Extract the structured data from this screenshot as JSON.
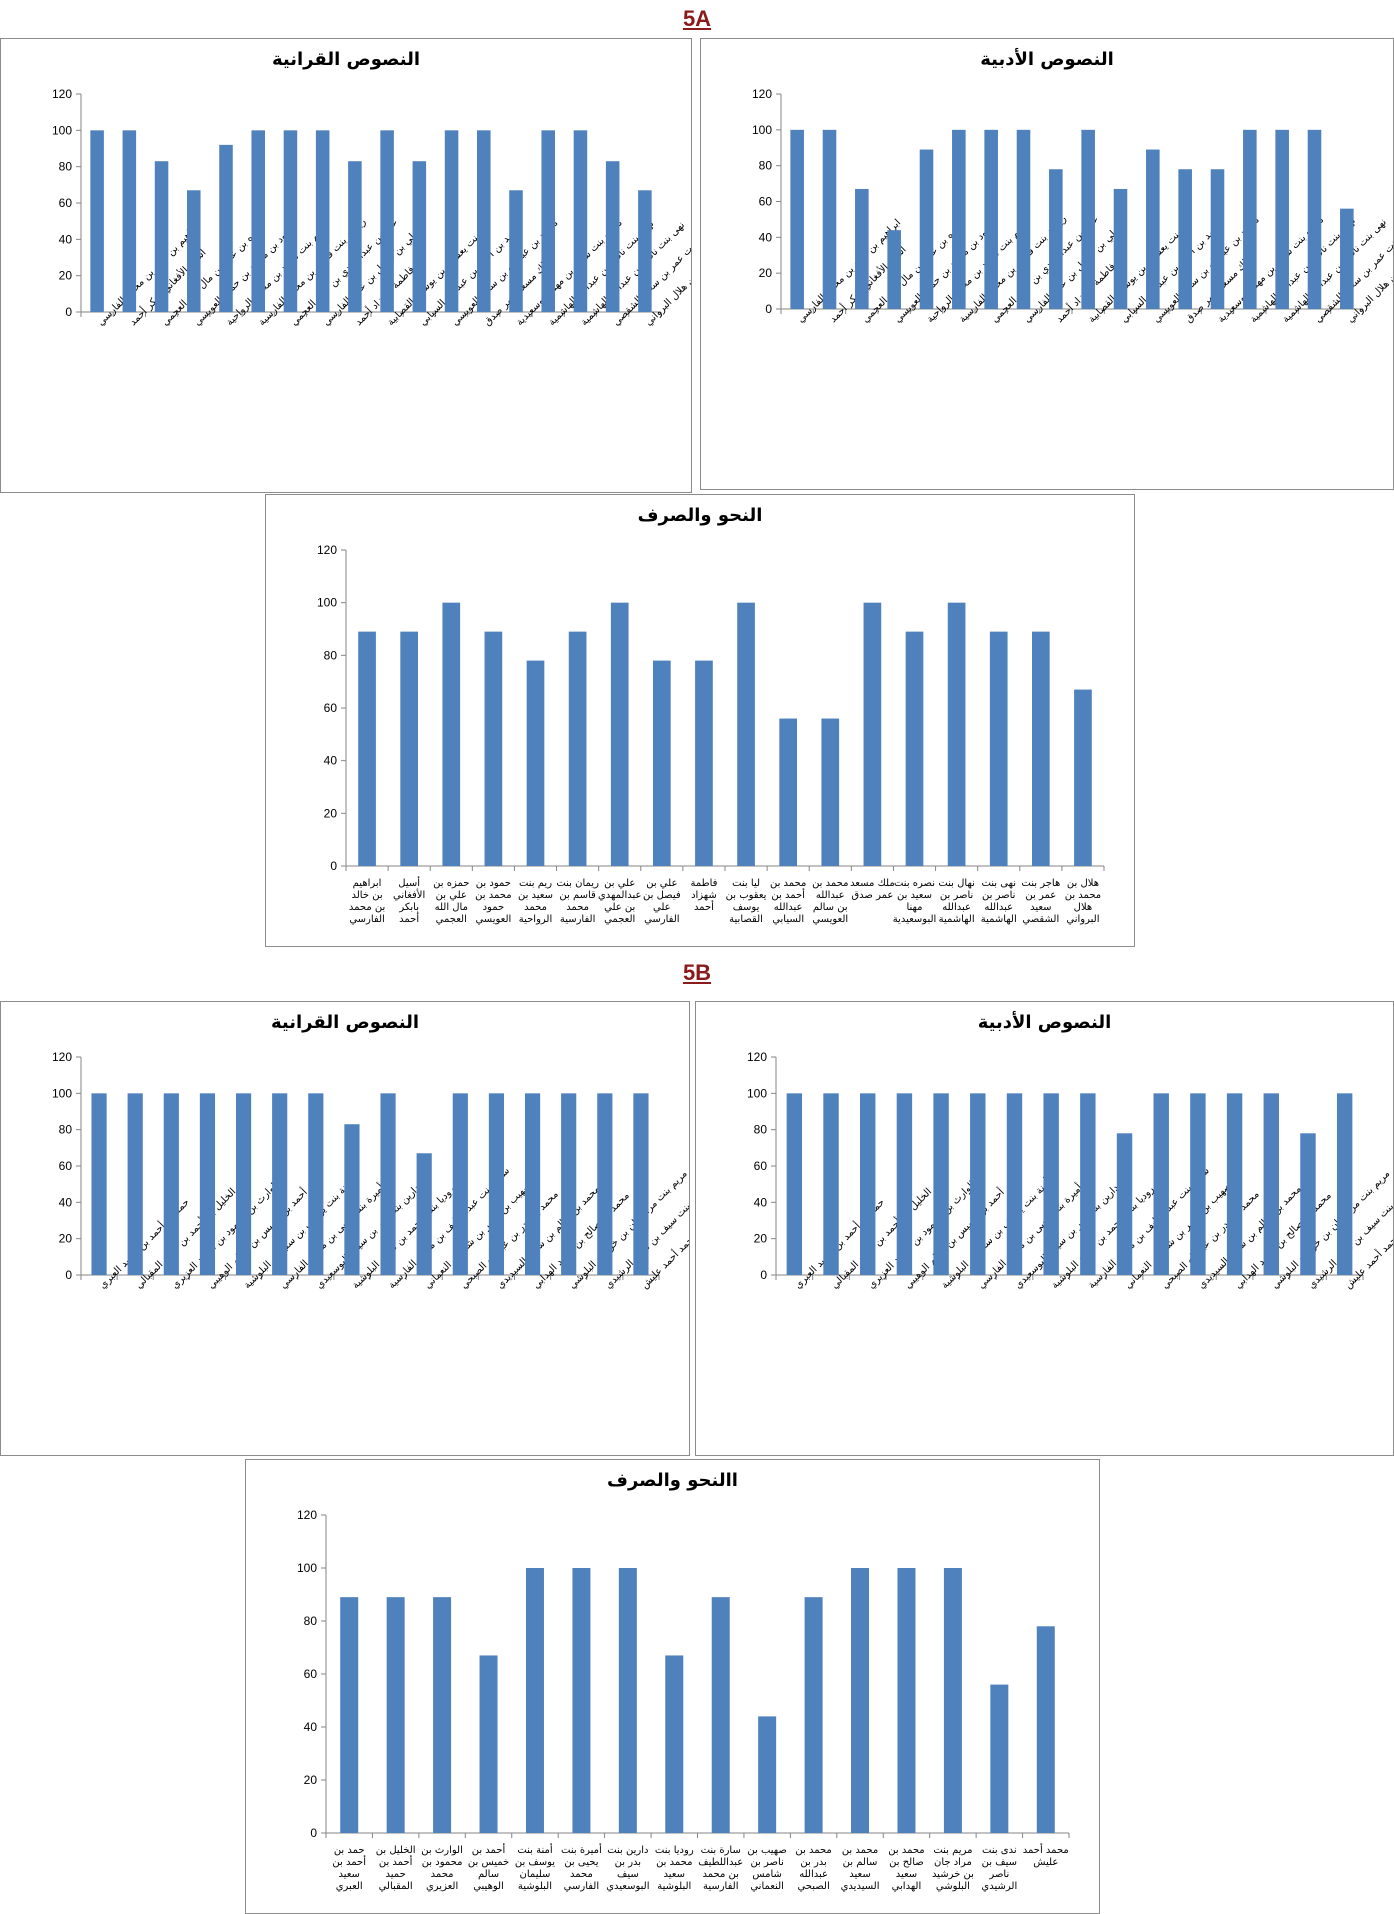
{
  "sections": {
    "a": "5A",
    "b": "5B"
  },
  "colors": {
    "bar": "#4f81bd",
    "axis": "#868686",
    "section_title": "#8b1a1a"
  },
  "chart_data": [
    {
      "id": "5a-adabiya",
      "type": "bar",
      "title": "النصوص الأدبية",
      "ylim": [
        0,
        120
      ],
      "yticks": [
        0,
        20,
        40,
        60,
        80,
        100,
        120
      ],
      "grid": false,
      "legend": "none",
      "categories": [
        "ابراهيم بن خالد بن محمد الفارسي",
        "أسيل الأفغاني بابكر أحمد",
        "حمزه بن علي بن مال الله العجمي",
        "حمود بن محمد بن حمود العويسي",
        "ريم بنت سعيد بن محمد الرواحية",
        "ريمان بنت قاسم بن محمد الفارسية",
        "علي بن عبدالمهدي بن علي العجمي",
        "علي بن فيصل بن علي الفارسي",
        "فاطمة شهزاد أحمد",
        "ليا بنت يعقوب بن يوسف القصابية",
        "محمد بن أحمد بن عبدالله السيابي",
        "محمد بن عبدالله بن سالم العويسي",
        "ملك مسعد عمر صدق",
        "نصره بنت سعيد بن مهنا البوسعيدية",
        "نهال بنت ناصر بن عبدالله الهاشمية",
        "نهى بنت ناصر بن عبدالله الهاشمية",
        "هاجر بنت عمر بن سعيد الشقصي",
        "هلال بن محمد بن هلال البرواني"
      ],
      "values": [
        100,
        100,
        67,
        44,
        89,
        100,
        100,
        100,
        78,
        100,
        67,
        89,
        78,
        78,
        100,
        100,
        100,
        56
      ]
    },
    {
      "id": "5a-quraniya",
      "type": "bar",
      "title": "النصوص القرانية",
      "ylim": [
        0,
        120
      ],
      "yticks": [
        0,
        20,
        40,
        60,
        80,
        100,
        120
      ],
      "grid": false,
      "legend": "none",
      "categories": [
        "ابراهيم بن خالد بن محمد الفارسي",
        "أسيل الأفغاني بابكر أحمد",
        "حمزه بن علي بن مال الله العجمي",
        "حمود بن محمد بن حمود العويسي",
        "ريم بنت سعيد بن محمد الرواحية",
        "ريمان بنت قاسم بن محمد الفارسية",
        "علي بن عبدالمهدي بن علي العجمي",
        "علي بن فيصل بن علي الفارسي",
        "فاطمة شهزاد أحمد",
        "ليا بنت يعقوب بن يوسف القصابية",
        "محمد بن أحمد بن عبدالله السيابي",
        "محمد بن عبدالله بن سالم العويسي",
        "ملك مسعد عمر صدق",
        "نصره بنت سعيد بن مهنا البوسعيدية",
        "نهال بنت ناصر بن عبدالله الهاشمية",
        "نهى بنت ناصر بن عبدالله الهاشمية",
        "هاجر بنت عمر بن سعيد الشقصي",
        "هلال بن محمد بن هلال البرواني"
      ],
      "values": [
        100,
        100,
        83,
        67,
        92,
        100,
        100,
        100,
        83,
        100,
        83,
        100,
        100,
        67,
        100,
        100,
        83,
        67
      ]
    },
    {
      "id": "5a-nahw",
      "type": "bar",
      "title": "النحو والصرف",
      "ylim": [
        0,
        120
      ],
      "yticks": [
        0,
        20,
        40,
        60,
        80,
        100,
        120
      ],
      "grid": false,
      "legend": "none",
      "categories": [
        "ابراهيم بن خالد بن محمد الفارسي",
        "أسيل الأفغاني بابكر أحمد",
        "حمزه بن علي بن مال الله العجمي",
        "حمود بن محمد بن حمود العويسي",
        "ريم بنت سعيد بن محمد الرواحية",
        "ريمان بنت قاسم بن محمد الفارسية",
        "علي بن عبدالمهدي بن علي العجمي",
        "علي بن فيصل بن علي الفارسي",
        "فاطمة شهزاد أحمد",
        "ليا بنت يعقوب بن يوسف القصابية",
        "محمد بن أحمد بن عبدالله السيابي",
        "محمد بن عبدالله بن سالم العويسي",
        "ملك مسعد عمر صدق",
        "نصره بنت سعيد بن مهنا البوسعيدية",
        "نهال بنت ناصر بن عبدالله الهاشمية",
        "نهى بنت ناصر بن عبدالله الهاشمية",
        "هاجر بنت عمر بن سعيد الشقصي",
        "هلال بن محمد بن هلال البرواني"
      ],
      "values": [
        89,
        89,
        100,
        89,
        78,
        89,
        100,
        78,
        78,
        100,
        56,
        56,
        100,
        89,
        100,
        89,
        89,
        67
      ]
    },
    {
      "id": "5b-adabiya",
      "type": "bar",
      "title": "النصوص الأدبية",
      "ylim": [
        0,
        120
      ],
      "yticks": [
        0,
        20,
        40,
        60,
        80,
        100,
        120
      ],
      "grid": false,
      "legend": "none",
      "categories": [
        "حمد بن أحمد بن سعيد العبري",
        "الخليل بن أحمد بن حميد المقبالي",
        "الوارث بن محمود بن محمد العزيري",
        "أحمد بن خميس بن سالم الوهيبي",
        "أمنة بنت يوسف بن سليمان البلوشية",
        "أميرة بنت يحيى بن محمد الفارسي",
        "دارين بنت بدر بن سيف البوسعيدي",
        "روديا بنت محمد بن سعيد البلوشية",
        "سارة بنت عبداللطيف بن محمد الفارسية",
        "صهيب بن ناصر بن شامس النعماني",
        "محمد بن بدر بن عبدالله الصبحي",
        "محمد بن سالم بن سعيد السيديدي",
        "محمد بن صالح بن سعيد الهدابي",
        "مريم بنت مراد جان بن خرشيد البلوشي",
        "ندى بنت سيف بن ناصر الرشيدي",
        "محمد أحمد عليش"
      ],
      "values": [
        100,
        100,
        100,
        100,
        100,
        100,
        100,
        100,
        100,
        78,
        100,
        100,
        100,
        100,
        78,
        100
      ]
    },
    {
      "id": "5b-quraniya",
      "type": "bar",
      "title": "النصوص القرانية",
      "ylim": [
        0,
        120
      ],
      "yticks": [
        0,
        20,
        40,
        60,
        80,
        100,
        120
      ],
      "grid": false,
      "legend": "none",
      "categories": [
        "حمد بن أحمد بن سعيد العبري",
        "الخليل بن أحمد بن حميد المقبالي",
        "الوارث بن محمود بن محمد العزيري",
        "أحمد بن خميس بن سالم الوهيبي",
        "أمنة بنت يوسف بن سليمان البلوشية",
        "أميرة بنت يحيى بن محمد الفارسي",
        "دارين بنت بدر بن سيف البوسعيدي",
        "روديا بنت محمد بن سعيد البلوشية",
        "سارة بنت عبداللطيف بن محمد الفارسية",
        "صهيب بن ناصر بن شامس النعماني",
        "محمد بن بدر بن عبدالله الصبحي",
        "محمد بن سالم بن سعيد السيديدي",
        "محمد بن صالح بن سعيد الهدابي",
        "مريم بنت مراد جان بن خرشيد البلوشي",
        "ندى بنت سيف بن ناصر الرشيدي",
        "محمد أحمد عليش"
      ],
      "values": [
        100,
        100,
        100,
        100,
        100,
        100,
        100,
        83,
        100,
        67,
        100,
        100,
        100,
        100,
        100,
        100
      ]
    },
    {
      "id": "5b-nahw",
      "type": "bar",
      "title": "االنحو والصرف",
      "ylim": [
        0,
        120
      ],
      "yticks": [
        0,
        20,
        40,
        60,
        80,
        100,
        120
      ],
      "grid": false,
      "legend": "none",
      "categories": [
        "حمد بن أحمد بن سعيد العبري",
        "الخليل بن أحمد بن حميد المقبالي",
        "الوارث بن محمود بن محمد العزيري",
        "أحمد بن خميس بن سالم الوهيبي",
        "أمنة بنت يوسف بن سليمان البلوشية",
        "أميرة بنت يحيى بن محمد الفارسي",
        "دارين بنت بدر بن سيف البوسعيدي",
        "روديا بنت محمد بن سعيد البلوشية",
        "سارة بنت عبداللطيف بن محمد الفارسية",
        "صهيب بن ناصر بن شامس النعماني",
        "محمد بن بدر بن عبدالله الصبحي",
        "محمد بن سالم بن سعيد السيديدي",
        "محمد بن صالح بن سعيد الهدابي",
        "مريم بنت مراد جان بن خرشيد البلوشي",
        "ندى بنت سيف بن ناصر الرشيدي",
        "محمد أحمد عليش"
      ],
      "values": [
        89,
        89,
        89,
        67,
        100,
        100,
        100,
        67,
        89,
        44,
        89,
        100,
        100,
        100,
        56,
        78
      ]
    }
  ]
}
